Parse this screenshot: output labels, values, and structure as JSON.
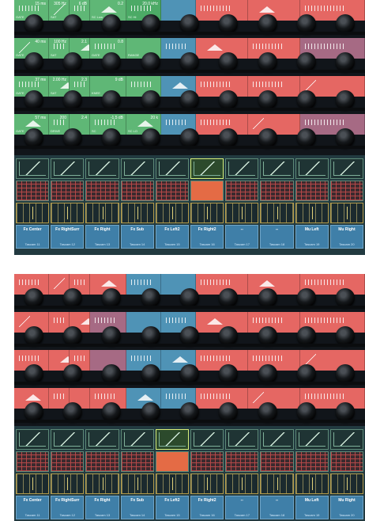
{
  "photo_top": {
    "knob_rows": [
      {
        "tiles": [
          {
            "color": "g",
            "value": "15 ms",
            "label": "GATE"
          },
          {
            "color": "g",
            "value": "305 Hz",
            "label": "SAT"
          },
          {
            "color": "g",
            "value": "6 dB",
            "label": "CMP"
          },
          {
            "color": "g",
            "value": "0.2",
            "label": "SC Low"
          },
          {
            "color": "g2",
            "value": "20.0 kHz",
            "label": "SC Hi"
          },
          {
            "color": "b",
            "value": "",
            "label": ""
          },
          {
            "color": "r",
            "value": "",
            "label": ""
          },
          {
            "color": "r",
            "value": "",
            "label": ""
          },
          {
            "color": "r",
            "value": "",
            "label": ""
          }
        ]
      },
      {
        "tiles": [
          {
            "color": "g",
            "value": "40 ms",
            "label": "GATE"
          },
          {
            "color": "g",
            "value": "100 Hz",
            "label": "SAT"
          },
          {
            "color": "g",
            "value": "2.1",
            "label": "CMP"
          },
          {
            "color": "g",
            "value": "0.8",
            "label": "GATE"
          },
          {
            "color": "g",
            "value": "",
            "label": "RANGE"
          },
          {
            "color": "b",
            "value": "",
            "label": ""
          },
          {
            "color": "r",
            "value": "",
            "label": ""
          },
          {
            "color": "r",
            "value": "",
            "label": ""
          },
          {
            "color": "m",
            "value": "",
            "label": ""
          }
        ]
      },
      {
        "tiles": [
          {
            "color": "g",
            "value": "37 ms",
            "label": "GATE"
          },
          {
            "color": "g",
            "value": "2.00 Hz",
            "label": "SAT"
          },
          {
            "color": "g",
            "value": "2.3",
            "label": "CMP"
          },
          {
            "color": "g",
            "value": "9 dB",
            "label": "KNEE"
          },
          {
            "color": "g",
            "value": "",
            "label": ""
          },
          {
            "color": "b",
            "value": "",
            "label": ""
          },
          {
            "color": "r",
            "value": "",
            "label": ""
          },
          {
            "color": "r",
            "value": "",
            "label": ""
          },
          {
            "color": "r",
            "value": "",
            "label": ""
          }
        ]
      },
      {
        "tiles": [
          {
            "color": "g",
            "value": "57 ms",
            "label": "GATE"
          },
          {
            "color": "g",
            "value": "200",
            "label": "DRIVE"
          },
          {
            "color": "g",
            "value": "2.4",
            "label": "CMP"
          },
          {
            "color": "g",
            "value": "-1.5 dB",
            "label": "SC"
          },
          {
            "color": "g",
            "value": "20 k",
            "label": "SC LO"
          },
          {
            "color": "b",
            "value": "",
            "label": ""
          },
          {
            "color": "r",
            "value": "",
            "label": ""
          },
          {
            "color": "r",
            "value": "",
            "label": ""
          },
          {
            "color": "m",
            "value": "",
            "label": ""
          }
        ]
      }
    ],
    "screen": {
      "highlight_index": 5,
      "channels": [
        {
          "name": "Fx Center",
          "sub": "Tascam 11"
        },
        {
          "name": "Fx RightSurr",
          "sub": "Tascam 12"
        },
        {
          "name": "Fx Right",
          "sub": "Tascam 13"
        },
        {
          "name": "Fx Sub",
          "sub": "Tascam 14"
        },
        {
          "name": "Fx Left2",
          "sub": "Tascam 15"
        },
        {
          "name": "Fx Right2",
          "sub": "Tascam 16"
        },
        {
          "name": "--",
          "sub": "Tascam 17"
        },
        {
          "name": "--",
          "sub": "Tascam 18"
        },
        {
          "name": "Mu Left",
          "sub": "Tascam 19"
        },
        {
          "name": "Mu Right",
          "sub": "Tascam 20"
        }
      ]
    }
  },
  "photo_bottom": {
    "knob_rows": [
      {
        "tiles": [
          {
            "color": "r",
            "value": "",
            "label": ""
          },
          {
            "color": "r",
            "value": "",
            "label": ""
          },
          {
            "color": "r",
            "value": "",
            "label": ""
          },
          {
            "color": "r",
            "value": "",
            "label": ""
          },
          {
            "color": "b",
            "value": "",
            "label": ""
          },
          {
            "color": "b",
            "value": "",
            "label": ""
          },
          {
            "color": "r",
            "value": "",
            "label": ""
          },
          {
            "color": "r",
            "value": "",
            "label": ""
          },
          {
            "color": "r",
            "value": "",
            "label": ""
          }
        ]
      },
      {
        "tiles": [
          {
            "color": "r",
            "value": "",
            "label": ""
          },
          {
            "color": "r",
            "value": "",
            "label": ""
          },
          {
            "color": "r",
            "value": "",
            "label": ""
          },
          {
            "color": "m",
            "value": "",
            "label": ""
          },
          {
            "color": "b",
            "value": "",
            "label": ""
          },
          {
            "color": "b",
            "value": "",
            "label": ""
          },
          {
            "color": "r",
            "value": "",
            "label": ""
          },
          {
            "color": "r",
            "value": "",
            "label": ""
          },
          {
            "color": "r",
            "value": "",
            "label": ""
          }
        ]
      },
      {
        "tiles": [
          {
            "color": "r",
            "value": "",
            "label": ""
          },
          {
            "color": "r",
            "value": "",
            "label": ""
          },
          {
            "color": "r",
            "value": "",
            "label": ""
          },
          {
            "color": "m",
            "value": "",
            "label": ""
          },
          {
            "color": "b",
            "value": "",
            "label": ""
          },
          {
            "color": "b",
            "value": "",
            "label": ""
          },
          {
            "color": "r",
            "value": "",
            "label": ""
          },
          {
            "color": "r",
            "value": "",
            "label": ""
          },
          {
            "color": "r",
            "value": "",
            "label": ""
          }
        ]
      },
      {
        "tiles": [
          {
            "color": "r",
            "value": "",
            "label": ""
          },
          {
            "color": "r",
            "value": "",
            "label": ""
          },
          {
            "color": "r",
            "value": "",
            "label": ""
          },
          {
            "color": "r",
            "value": "",
            "label": ""
          },
          {
            "color": "b",
            "value": "",
            "label": ""
          },
          {
            "color": "b",
            "value": "",
            "label": ""
          },
          {
            "color": "r",
            "value": "",
            "label": ""
          },
          {
            "color": "r",
            "value": "",
            "label": ""
          },
          {
            "color": "r",
            "value": "",
            "label": ""
          }
        ]
      }
    ],
    "screen": {
      "highlight_index": 4,
      "channels": [
        {
          "name": "Fx Center",
          "sub": "Tascam 11"
        },
        {
          "name": "Fx RightSurr",
          "sub": "Tascam 12"
        },
        {
          "name": "Fx Right",
          "sub": "Tascam 13"
        },
        {
          "name": "Fx Sub",
          "sub": "Tascam 14"
        },
        {
          "name": "Fx Left2",
          "sub": "Tascam 15"
        },
        {
          "name": "Fx Right2",
          "sub": "Tascam 16"
        },
        {
          "name": "--",
          "sub": "Tascam 17"
        },
        {
          "name": "--",
          "sub": "Tascam 18"
        },
        {
          "name": "Mu Left",
          "sub": "Tascam 19"
        },
        {
          "name": "Mu Right",
          "sub": "Tascam 20"
        }
      ]
    }
  }
}
